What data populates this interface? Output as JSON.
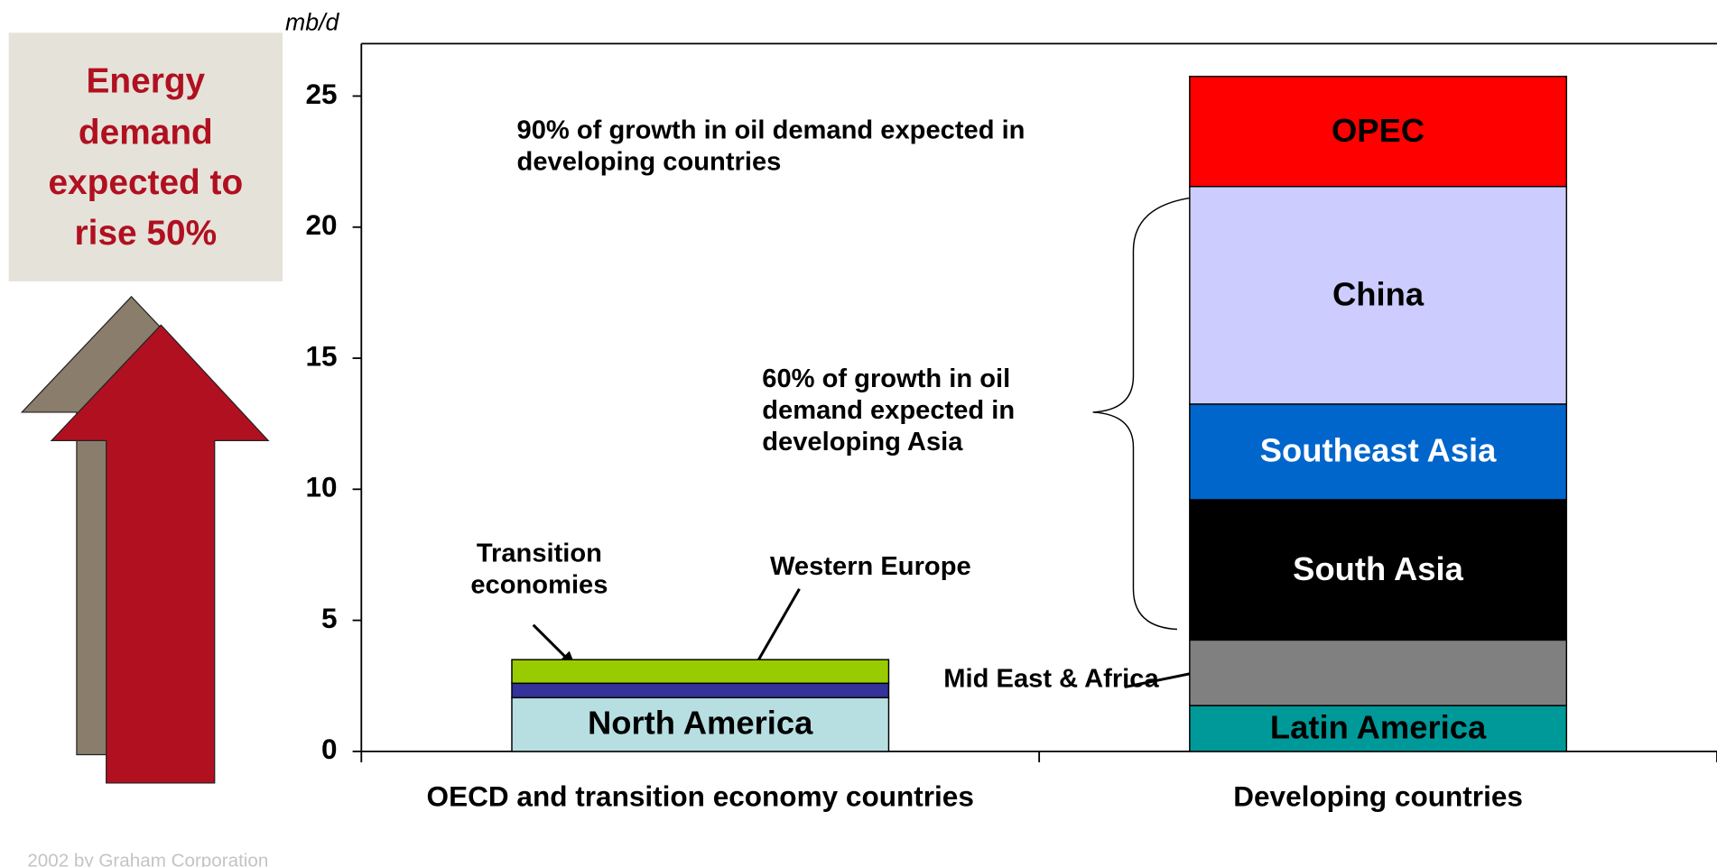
{
  "chart_data": {
    "type": "bar",
    "stacked": true,
    "y_label": "mb/d",
    "categories": [
      "OECD and transition economy countries",
      "Developing countries"
    ],
    "series": [
      {
        "name": "North America",
        "color": "#b7dfe2",
        "label_color": "#000000",
        "values": [
          2.05,
          null
        ]
      },
      {
        "name": "Western Europe",
        "color": "#333399",
        "values": [
          0.55,
          null
        ]
      },
      {
        "name": "Transition economies",
        "color": "#99cc00",
        "values": [
          0.9,
          null
        ]
      },
      {
        "name": "Latin America",
        "color": "#009999",
        "label_color": "#000000",
        "values": [
          null,
          1.75
        ]
      },
      {
        "name": "Mid East & Africa",
        "color": "#808080",
        "values": [
          null,
          2.5
        ]
      },
      {
        "name": "South Asia",
        "color": "#000000",
        "label_color": "#ffffff",
        "values": [
          null,
          5.35
        ]
      },
      {
        "name": "Southeast Asia",
        "color": "#0066cc",
        "label_color": "#ffffff",
        "values": [
          null,
          3.65
        ]
      },
      {
        "name": "China",
        "color": "#ccccff",
        "label_color": "#000000",
        "values": [
          null,
          8.3
        ]
      },
      {
        "name": "OPEC",
        "color": "#ff0000",
        "label_color": "#000000",
        "values": [
          null,
          4.2
        ]
      }
    ],
    "ylim": [
      0,
      27
    ],
    "yticks": [
      0,
      5,
      10,
      15,
      20,
      25
    ],
    "annotations": [
      "90% of growth in oil demand expected in developing countries",
      "60% of growth in oil demand expected in developing Asia"
    ]
  },
  "callout": "Energy demand expected to rise 50%",
  "footer": "2002 by Graham Corporation"
}
